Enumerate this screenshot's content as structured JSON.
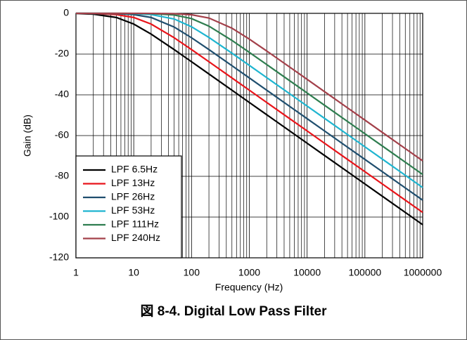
{
  "chart_data": {
    "type": "line",
    "x_label": "Frequency (Hz)",
    "y_label": "Gain (dB)",
    "caption": "図 8-4. Digital Low Pass Filter",
    "x_scale": "log",
    "xlim": [
      1,
      1000000
    ],
    "xticks": [
      1,
      10,
      100,
      1000,
      10000,
      100000,
      1000000
    ],
    "minor_xgrid": [
      2,
      3,
      4,
      5,
      6,
      7,
      8,
      9,
      20,
      30,
      40,
      50,
      60,
      70,
      80,
      90,
      200,
      300,
      400,
      500,
      600,
      700,
      800,
      900,
      2000,
      3000,
      4000,
      5000,
      6000,
      7000,
      8000,
      9000,
      20000,
      30000,
      40000,
      50000,
      60000,
      70000,
      80000,
      90000,
      200000,
      300000,
      400000,
      500000,
      600000,
      700000,
      800000,
      900000
    ],
    "ylim": [
      -120,
      0
    ],
    "yticks": [
      -120,
      -100,
      -80,
      -60,
      -40,
      -20,
      0
    ],
    "grid": true,
    "legend": "lower left",
    "x": [
      1,
      2,
      5,
      10,
      20,
      50,
      100,
      200,
      500,
      1000,
      2000,
      5000,
      10000,
      20000,
      50000,
      100000,
      200000,
      500000,
      1000000
    ],
    "series": [
      {
        "name": "LPF 6.5Hz",
        "color": "#000000",
        "values": [
          -0.1,
          -0.39,
          -2.02,
          -5.27,
          -10.2,
          -17.79,
          -23.76,
          -29.76,
          -37.72,
          -43.74,
          -49.76,
          -57.72,
          -63.74,
          -69.76,
          -77.72,
          -83.74,
          -89.76,
          -97.72,
          -103.74
        ]
      },
      {
        "name": "LPF 13Hz",
        "color": "#e8141a",
        "values": [
          -0.03,
          -0.1,
          -0.6,
          -2.02,
          -5.27,
          -11.98,
          -17.79,
          -23.76,
          -31.7,
          -37.72,
          -43.74,
          -51.7,
          -57.72,
          -63.74,
          -71.7,
          -77.72,
          -83.74,
          -91.7,
          -97.72
        ]
      },
      {
        "name": "LPF 26Hz",
        "color": "#1f4e6e",
        "values": [
          -0.01,
          -0.03,
          -0.16,
          -0.6,
          -2.02,
          -6.72,
          -11.98,
          -17.79,
          -25.69,
          -31.7,
          -37.72,
          -45.68,
          -51.7,
          -57.72,
          -65.68,
          -71.7,
          -77.72,
          -85.68,
          -91.7
        ]
      },
      {
        "name": "LPF 53Hz",
        "color": "#1fb5d0",
        "values": [
          0,
          -0.01,
          -0.04,
          -0.15,
          -0.58,
          -2.76,
          -6.59,
          -11.83,
          -19.54,
          -25.53,
          -31.55,
          -39.49,
          -45.51,
          -51.53,
          -59.49,
          -65.51,
          -71.53,
          -79.49,
          -85.51
        ]
      },
      {
        "name": "LPF 111Hz",
        "color": "#2e7d4f",
        "values": [
          0,
          0,
          -0.01,
          -0.04,
          -0.14,
          -0.8,
          -2.58,
          -6.28,
          -13.28,
          -19.15,
          -25.13,
          -33.08,
          -39.09,
          -45.11,
          -53.07,
          -59.09,
          -65.11,
          -73.07,
          -79.09
        ]
      },
      {
        "name": "LPF 240Hz",
        "color": "#a3404a",
        "values": [
          0,
          0,
          0,
          -0.01,
          -0.03,
          -0.18,
          -0.7,
          -2.29,
          -7.28,
          -12.64,
          -18.48,
          -26.38,
          -32.4,
          -38.42,
          -46.38,
          -52.4,
          -58.42,
          -66.38,
          -72.4
        ]
      }
    ]
  }
}
